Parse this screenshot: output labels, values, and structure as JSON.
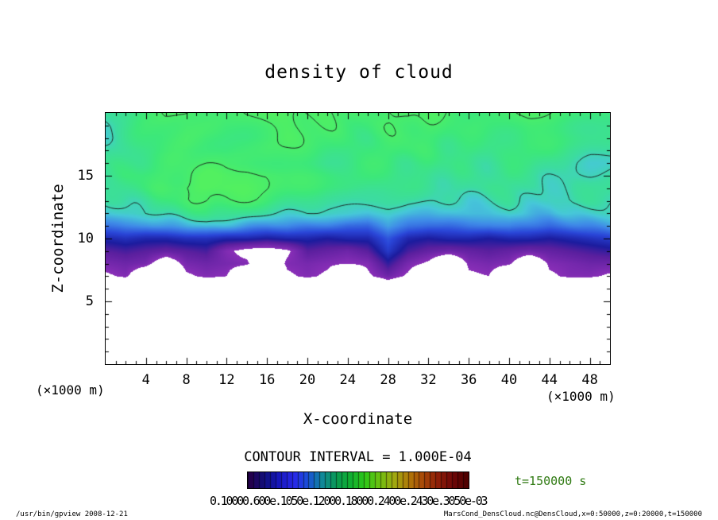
{
  "title": "density of cloud",
  "axes": {
    "x": {
      "label": "X-coordinate",
      "unit": "(×1000 m)",
      "ticks": [
        4,
        8,
        12,
        16,
        20,
        24,
        28,
        32,
        36,
        40,
        44,
        48
      ],
      "range": [
        0,
        50
      ]
    },
    "z": {
      "label": "Z-coordinate",
      "unit": "(×1000 m)",
      "ticks": [
        5,
        10,
        15
      ],
      "range": [
        0,
        20
      ]
    }
  },
  "contour_note": "CONTOUR INTERVAL = 1.000E-04",
  "time_label": "t=150000 s",
  "colorbar": {
    "labels_text": "0.10000.600e.1050e.12000.18000.2400e.2430e.3050e-03",
    "stops": [
      "#23004d",
      "#101080",
      "#1818c0",
      "#2828e8",
      "#1a50d8",
      "#108898",
      "#0a9a50",
      "#10b030",
      "#30c818",
      "#70c010",
      "#a0a810",
      "#b07808",
      "#a84808",
      "#8f2008",
      "#700808",
      "#500000"
    ],
    "n_stripes": 40
  },
  "footer": {
    "left": "/usr/bin/gpview  2008-12-21",
    "right": "MarsCond_DensCloud.nc@DensCloud,x=0:50000,z=0:20000,t=150000"
  },
  "chart_data": {
    "type": "heatmap",
    "title": "density of cloud",
    "xlabel": "X-coordinate",
    "ylabel": "Z-coordinate",
    "x_range_m": [
      0,
      50000
    ],
    "z_range_m": [
      0,
      20000
    ],
    "contour_interval": "1.000E-04",
    "value_scale": 0.0001,
    "white_below": 0.95,
    "contour_levels_drawn": [
      2.0,
      2.4
    ],
    "colormap": [
      [
        0.95,
        "#8a2fb8"
      ],
      [
        1.2,
        "#5a1f9e"
      ],
      [
        1.35,
        "#1c1c9e"
      ],
      [
        1.55,
        "#2a46d8"
      ],
      [
        1.75,
        "#3f8ae8"
      ],
      [
        1.92,
        "#46c8d8"
      ],
      [
        2.05,
        "#3cdca0"
      ],
      [
        2.25,
        "#3ce87a"
      ],
      [
        2.5,
        "#52f060"
      ]
    ],
    "grid": {
      "nx": 26,
      "nz": 21,
      "x_km": "0 to 50 step 2 (left to right)",
      "z_km": "20 down to 0 step 1 (rows top to bottom)",
      "values": [
        [
          2.05,
          2.15,
          2.3,
          2.4,
          2.45,
          2.4,
          2.35,
          2.4,
          2.45,
          2.5,
          2.45,
          2.4,
          2.35,
          2.35,
          2.4,
          2.45,
          2.4,
          2.35,
          2.3,
          2.3,
          2.35,
          2.4,
          2.35,
          2.3,
          2.25,
          2.2
        ],
        [
          2.0,
          2.1,
          2.25,
          2.35,
          2.4,
          2.35,
          2.3,
          2.35,
          2.4,
          2.45,
          2.4,
          2.35,
          2.3,
          2.3,
          2.35,
          2.4,
          2.35,
          2.3,
          2.25,
          2.25,
          2.3,
          2.35,
          2.3,
          2.25,
          2.2,
          2.15
        ],
        [
          2.0,
          2.1,
          2.2,
          2.3,
          2.35,
          2.3,
          2.3,
          2.3,
          2.35,
          2.4,
          2.35,
          2.3,
          2.25,
          2.25,
          2.3,
          2.35,
          2.3,
          2.25,
          2.2,
          2.2,
          2.25,
          2.3,
          2.25,
          2.2,
          2.15,
          2.1
        ],
        [
          2.05,
          2.1,
          2.2,
          2.25,
          2.3,
          2.3,
          2.25,
          2.3,
          2.35,
          2.3,
          2.3,
          2.25,
          2.2,
          2.25,
          2.3,
          2.3,
          2.25,
          2.2,
          2.2,
          2.15,
          2.2,
          2.25,
          2.2,
          2.1,
          2.05,
          2.05
        ],
        [
          2.1,
          2.15,
          2.25,
          2.3,
          2.35,
          2.35,
          2.3,
          2.35,
          2.35,
          2.3,
          2.25,
          2.2,
          2.2,
          2.25,
          2.25,
          2.2,
          2.2,
          2.15,
          2.15,
          2.1,
          2.15,
          2.2,
          2.1,
          2.05,
          2.0,
          2.0
        ],
        [
          2.1,
          2.2,
          2.3,
          2.35,
          2.4,
          2.45,
          2.45,
          2.5,
          2.45,
          2.35,
          2.3,
          2.25,
          2.2,
          2.2,
          2.2,
          2.15,
          2.15,
          2.1,
          2.1,
          2.1,
          2.15,
          2.1,
          2.05,
          2.0,
          2.0,
          2.05
        ],
        [
          2.05,
          2.15,
          2.25,
          2.35,
          2.45,
          2.5,
          2.5,
          2.45,
          2.4,
          2.3,
          2.25,
          2.2,
          2.2,
          2.15,
          2.15,
          2.1,
          2.1,
          2.05,
          2.05,
          2.1,
          2.1,
          2.05,
          2.0,
          2.0,
          2.05,
          2.1
        ],
        [
          2.0,
          2.05,
          2.1,
          2.2,
          2.35,
          2.45,
          2.4,
          2.35,
          2.3,
          2.2,
          2.15,
          2.1,
          2.1,
          2.1,
          2.05,
          2.0,
          2.0,
          2.0,
          1.95,
          2.0,
          2.05,
          2.0,
          1.95,
          2.0,
          2.05,
          2.05
        ],
        [
          1.9,
          1.95,
          2.0,
          2.05,
          2.1,
          2.2,
          2.15,
          2.1,
          2.05,
          2.0,
          2.0,
          1.95,
          1.95,
          1.9,
          1.95,
          1.9,
          1.85,
          1.85,
          1.9,
          1.9,
          1.95,
          1.9,
          1.85,
          1.9,
          1.95,
          2.0
        ],
        [
          1.7,
          1.75,
          1.75,
          1.8,
          1.85,
          1.9,
          1.85,
          1.8,
          1.75,
          1.75,
          1.7,
          1.7,
          1.65,
          1.65,
          1.85,
          1.7,
          1.65,
          1.65,
          1.7,
          1.7,
          1.75,
          1.7,
          1.65,
          1.7,
          1.75,
          1.8
        ],
        [
          1.4,
          1.45,
          1.4,
          1.4,
          1.45,
          1.45,
          1.4,
          1.4,
          1.35,
          1.4,
          1.4,
          1.35,
          1.4,
          1.4,
          1.6,
          1.4,
          1.35,
          1.4,
          1.4,
          1.35,
          1.4,
          1.4,
          1.35,
          1.4,
          1.45,
          1.5
        ],
        [
          1.2,
          1.25,
          1.2,
          1.15,
          1.2,
          1.25,
          1.0,
          0.85,
          0.8,
          0.9,
          1.2,
          1.15,
          1.1,
          1.2,
          1.5,
          1.25,
          1.15,
          1.1,
          1.15,
          1.2,
          1.15,
          1.1,
          1.15,
          1.2,
          1.25,
          1.3
        ],
        [
          1.05,
          1.1,
          1.05,
          0.7,
          1.05,
          1.1,
          1.05,
          1.0,
          0.6,
          1.0,
          1.05,
          1.0,
          0.95,
          1.0,
          1.3,
          1.05,
          0.9,
          0.5,
          1.0,
          1.05,
          1.0,
          0.6,
          1.0,
          1.05,
          1.1,
          1.1
        ],
        [
          0.9,
          1.0,
          0.6,
          0.3,
          0.9,
          1.0,
          0.95,
          0.5,
          0.3,
          0.9,
          1.0,
          0.9,
          0.4,
          0.9,
          1.1,
          0.9,
          0.4,
          0.3,
          0.9,
          0.95,
          0.5,
          0.3,
          0.9,
          1.0,
          1.0,
          0.9
        ],
        [
          0.3,
          0.5,
          0.2,
          0.1,
          0.3,
          0.6,
          0.5,
          0.2,
          0.1,
          0.4,
          0.6,
          0.4,
          0.1,
          0.3,
          0.6,
          0.4,
          0.1,
          0.1,
          0.4,
          0.5,
          0.2,
          0.1,
          0.4,
          0.5,
          0.5,
          0.3
        ],
        [
          0,
          0,
          0,
          0,
          0,
          0,
          0,
          0,
          0,
          0,
          0,
          0,
          0,
          0,
          0,
          0,
          0,
          0,
          0,
          0,
          0,
          0,
          0,
          0,
          0,
          0
        ],
        [
          0,
          0,
          0,
          0,
          0,
          0,
          0,
          0,
          0,
          0,
          0,
          0,
          0,
          0,
          0,
          0,
          0,
          0,
          0,
          0,
          0,
          0,
          0,
          0,
          0,
          0
        ],
        [
          0,
          0,
          0,
          0,
          0,
          0,
          0,
          0,
          0,
          0,
          0,
          0,
          0,
          0,
          0,
          0,
          0,
          0,
          0,
          0,
          0,
          0,
          0,
          0,
          0,
          0
        ],
        [
          0,
          0,
          0,
          0,
          0,
          0,
          0,
          0,
          0,
          0,
          0,
          0,
          0,
          0,
          0,
          0,
          0,
          0,
          0,
          0,
          0,
          0,
          0,
          0,
          0,
          0
        ],
        [
          0,
          0,
          0,
          0,
          0,
          0,
          0,
          0,
          0,
          0,
          0,
          0,
          0,
          0,
          0,
          0,
          0,
          0,
          0,
          0,
          0,
          0,
          0,
          0,
          0,
          0
        ],
        [
          0,
          0,
          0,
          0,
          0,
          0,
          0,
          0,
          0,
          0,
          0,
          0,
          0,
          0,
          0,
          0,
          0,
          0,
          0,
          0,
          0,
          0,
          0,
          0,
          0,
          0
        ]
      ]
    }
  }
}
